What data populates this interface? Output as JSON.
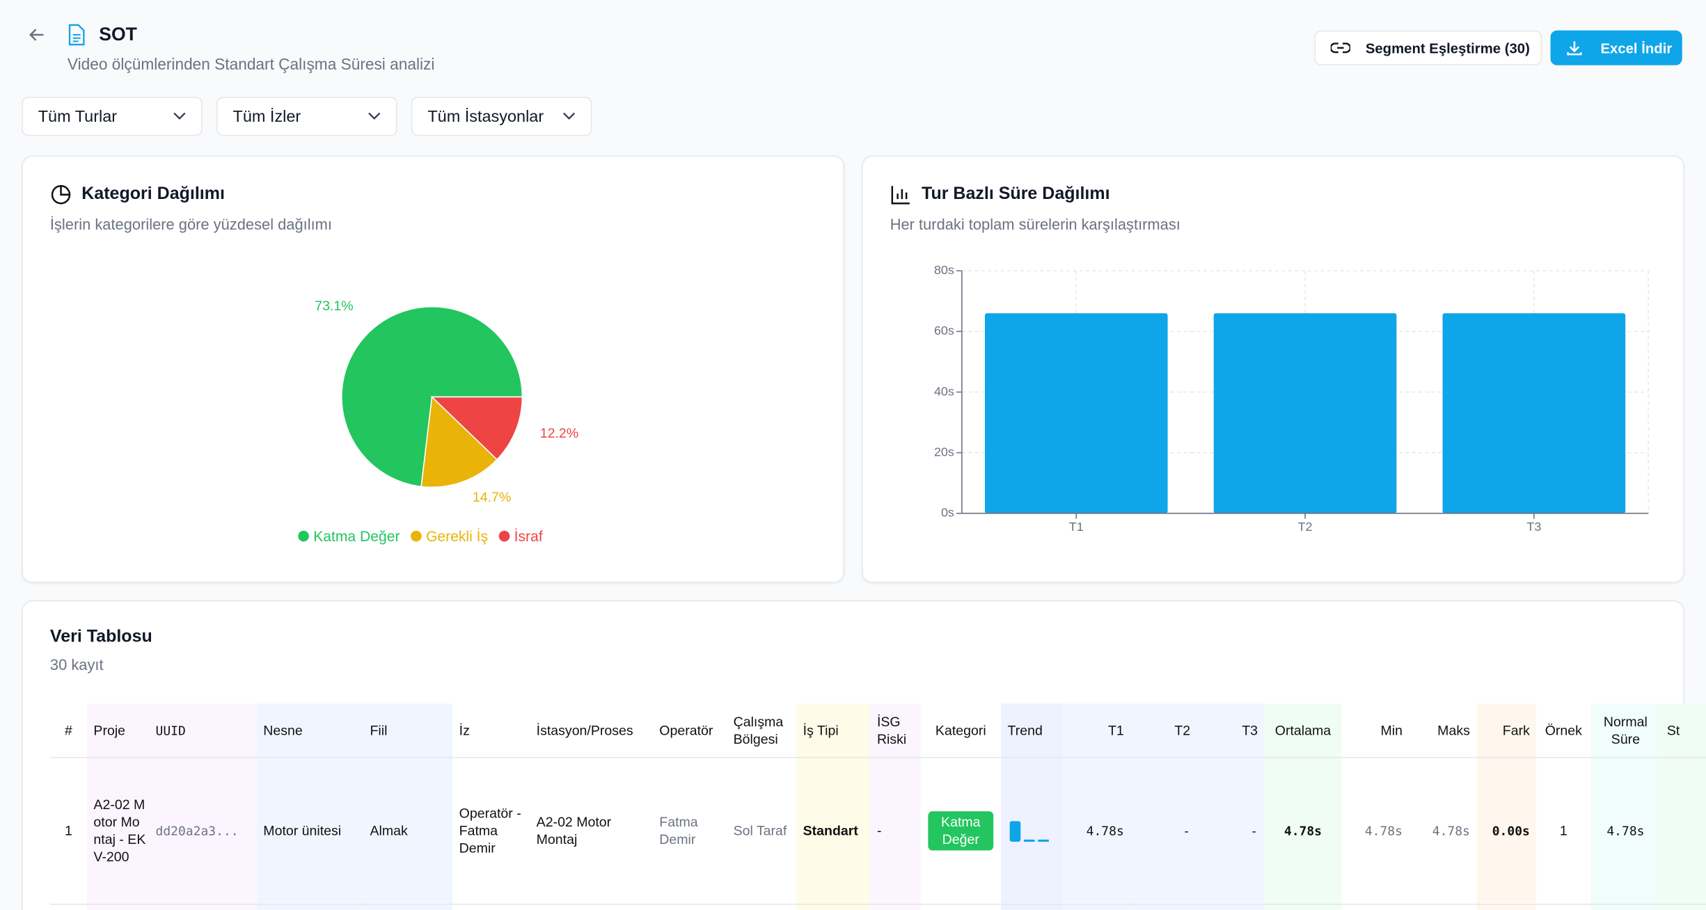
{
  "header": {
    "title": "SOT",
    "subtitle": "Video ölçümlerinden Standart Çalışma Süresi analizi",
    "buttons": [
      "Segment Eşleştirme (30)",
      "Excel İndir"
    ]
  },
  "filters": [
    "Tüm Turlar",
    "Tüm İzler",
    "Tüm İstasyonlar"
  ],
  "chart_data": [
    {
      "type": "pie",
      "title": "Kategori Dağılımı",
      "subtitle": "İşlerin kategorilere göre yüzdesel dağılımı",
      "categories": [
        "Katma Değer",
        "Gerekli İş",
        "İsraf"
      ],
      "values": [
        73.1,
        14.7,
        12.2
      ],
      "value_labels": [
        "73.1%",
        "14.7%",
        "12.2%"
      ],
      "colors": [
        "#22c55e",
        "#eab308",
        "#ef4444"
      ],
      "legend": "bottom"
    },
    {
      "type": "bar",
      "title": "Tur Bazlı Süre Dağılımı",
      "subtitle": "Her turdaki toplam sürelerin karşılaştırması",
      "categories": [
        "T1",
        "T2",
        "T3"
      ],
      "values": [
        66,
        66,
        66
      ],
      "color": "#0ea5e9",
      "ylim": [
        0,
        80
      ],
      "yticks": [
        {
          "value": 0,
          "label": "0s"
        },
        {
          "value": 20,
          "label": "20s"
        },
        {
          "value": 40,
          "label": "40s"
        },
        {
          "value": 60,
          "label": "60s"
        },
        {
          "value": 80,
          "label": "80s"
        }
      ],
      "grid": true
    }
  ],
  "table": {
    "title": "Veri Tablosu",
    "subtitle": "30 kayıt",
    "columns": [
      "#",
      "Proje",
      "UUID",
      "Nesne",
      "Fiil",
      "İz",
      "İstasyon/Proses",
      "Operatör",
      "Çalışma Bölgesi",
      "İş Tipi",
      "İSG Riski",
      "Kategori",
      "Trend",
      "T1",
      "T2",
      "T3",
      "Ortalama",
      "Min",
      "Maks",
      "Fark",
      "Örnek",
      "Normal Süre",
      "St"
    ],
    "rows": [
      [
        "1",
        "A2-02 Motor Montaj - EKV-200",
        "dd20a2a3...",
        "Motor ünitesi",
        "Almak",
        "Operatör - Fatma Demir",
        "A2-02 Motor Montaj",
        "Fatma Demir",
        "Sol Taraf",
        "Standart",
        "-",
        "Katma Değer",
        null,
        "4.78s",
        "-",
        "-",
        "4.78s",
        "4.78s",
        "4.78s",
        "0.00s",
        "1",
        "4.78s",
        null
      ]
    ]
  }
}
